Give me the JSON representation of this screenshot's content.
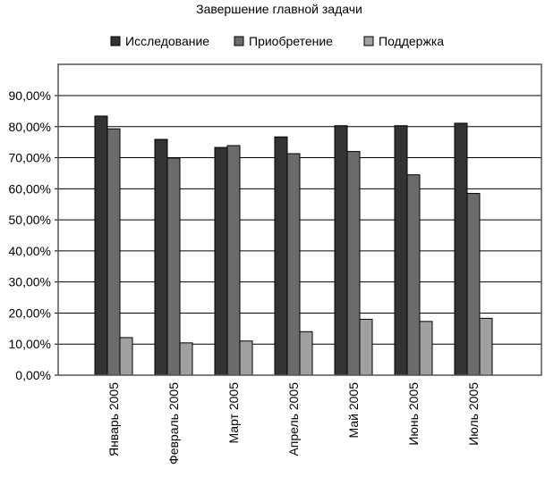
{
  "chart_data": {
    "type": "bar",
    "title": "Завершение главной задачи",
    "xlabel": "",
    "ylabel": "",
    "ylim": [
      0,
      90
    ],
    "y_ticks": [
      "0,00%",
      "10,00%",
      "20,00%",
      "30,00%",
      "40,00%",
      "50,00%",
      "60,00%",
      "70,00%",
      "80,00%",
      "90,00%"
    ],
    "grid": true,
    "legend_position": "top",
    "categories": [
      "Январь 2005",
      "Февраль 2005",
      "Март 2005",
      "Апрель 2005",
      "Май 2005",
      "Июнь 2005",
      "Июль 2005"
    ],
    "series": [
      {
        "name": "Исследование",
        "color": "#333333",
        "values": [
          83.4,
          75.9,
          73.3,
          76.7,
          80.3,
          80.3,
          81.1
        ]
      },
      {
        "name": "Приобретение",
        "color": "#6b6b6b",
        "values": [
          79.3,
          69.9,
          73.9,
          71.3,
          72.0,
          64.5,
          58.5
        ]
      },
      {
        "name": "Поддержка",
        "color": "#a0a0a0",
        "values": [
          12.1,
          10.4,
          11.0,
          14.0,
          18.0,
          17.3,
          18.3
        ]
      }
    ]
  }
}
